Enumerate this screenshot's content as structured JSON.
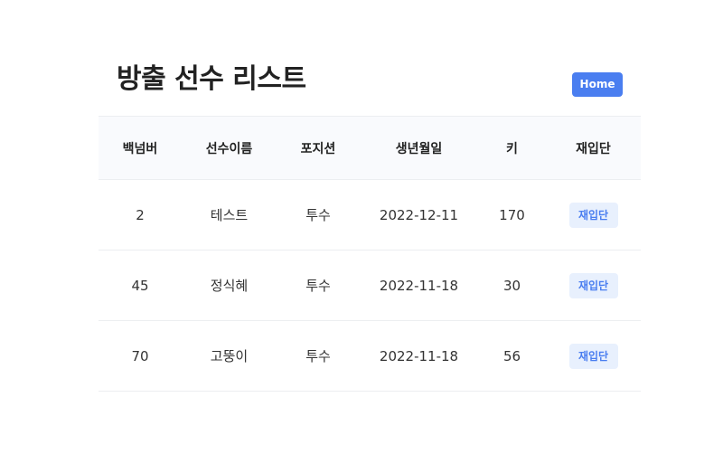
{
  "header": {
    "title": "방출 선수 리스트",
    "home_label": "Home"
  },
  "table": {
    "columns": [
      "백넘버",
      "선수이름",
      "포지션",
      "생년월일",
      "키",
      "재입단"
    ],
    "rows": [
      {
        "back_number": "2",
        "name": "테스트",
        "position": "투수",
        "birth": "2022-12-11",
        "height": "170",
        "action": "재입단"
      },
      {
        "back_number": "45",
        "name": "정식혜",
        "position": "투수",
        "birth": "2022-11-18",
        "height": "30",
        "action": "재입단"
      },
      {
        "back_number": "70",
        "name": "고뚱이",
        "position": "투수",
        "birth": "2022-11-18",
        "height": "56",
        "action": "재입단"
      }
    ]
  },
  "colors": {
    "accent": "#4a7ef0",
    "badge_bg": "#e8f0fd",
    "header_row_bg": "#f9fafd",
    "divider": "#eceef1"
  }
}
